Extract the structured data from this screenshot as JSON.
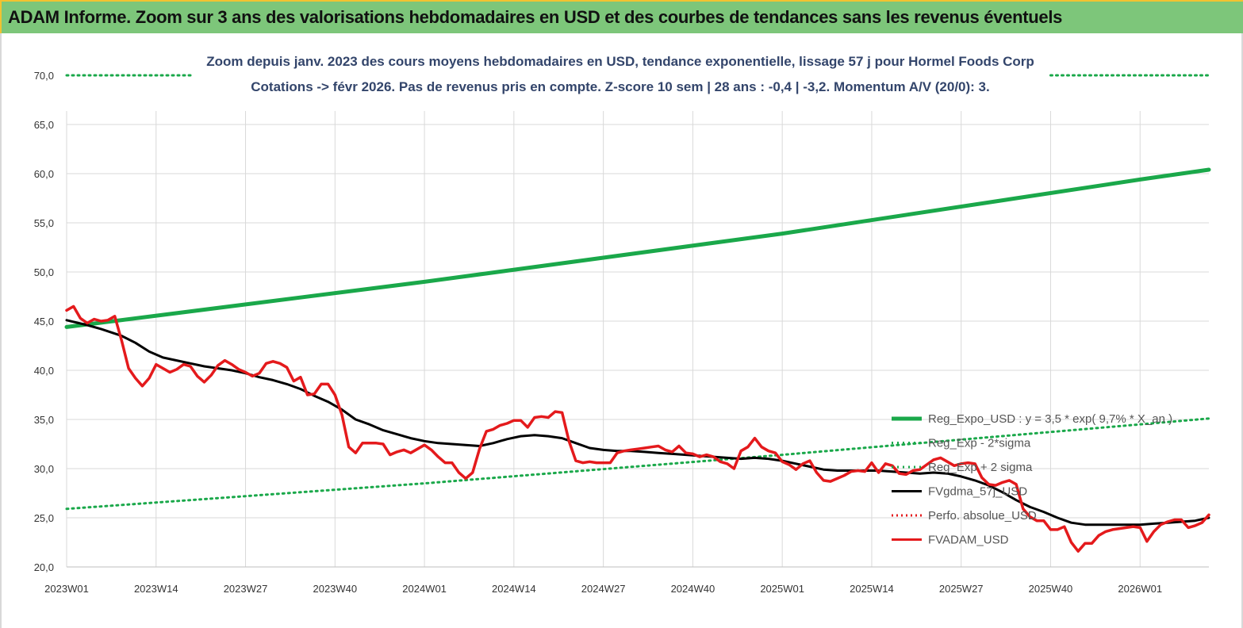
{
  "banner": {
    "title": "ADAM Informe. Zoom sur 3 ans des valorisations hebdomadaires en USD et des courbes de tendances sans les revenus éventuels"
  },
  "colors": {
    "banner_bg": "#7dc67a",
    "reg_expo": "#1aa84a",
    "sigma": "#1aa84a",
    "gdma": "#000000",
    "perfo": "#e41a1c",
    "adam": "#e41a1c"
  },
  "chart_data": {
    "type": "line",
    "title": "Zoom depuis janv. 2023 des cours moyens hebdomadaires en USD, tendance exponentielle, lissage 57 j pour Hormel Foods Corp",
    "subtitle": "Cotations -> févr 2026.  Pas de revenus pris en compte. Z-score 10 sem | 28 ans : -0,4 | -3,2. Momentum A/V (20/0): 3.",
    "xlabel": "",
    "ylabel": "",
    "ylim": [
      20,
      70
    ],
    "y_ticks": [
      "70,0",
      "65,0",
      "60,0",
      "55,0",
      "50,0",
      "45,0",
      "40,0",
      "35,0",
      "30,0",
      "25,0",
      "20,0"
    ],
    "x_ticks": [
      "2023W01",
      "2023W14",
      "2023W27",
      "2023W40",
      "2024W01",
      "2024W14",
      "2024W27",
      "2024W40",
      "2025W01",
      "2025W14",
      "2025W27",
      "2025W40",
      "2026W01"
    ],
    "x_tick_weeks": [
      0,
      13,
      26,
      39,
      52,
      65,
      78,
      91,
      104,
      117,
      130,
      143,
      156
    ],
    "x_range_weeks": [
      0,
      166
    ],
    "grid": true,
    "legend_position": "bottom-right",
    "series": [
      {
        "name": "Reg_Expo_USD : y = 3,5 * exp( 9,7% * X_an )",
        "style": "solid-thick",
        "points": [
          [
            0,
            44.4
          ],
          [
            52,
            49.0
          ],
          [
            104,
            53.9
          ],
          [
            156,
            59.4
          ],
          [
            166,
            60.4
          ]
        ]
      },
      {
        "name": "Reg_Exp - 2*sigma",
        "style": "dotted",
        "points": [
          [
            0,
            25.9
          ],
          [
            52,
            28.5
          ],
          [
            104,
            31.4
          ],
          [
            156,
            34.5
          ],
          [
            166,
            35.1
          ]
        ]
      },
      {
        "name": "Reg_Exp + 2 sigma",
        "style": "dotted",
        "points": [
          [
            0,
            70.0
          ],
          [
            18,
            70.0
          ],
          [
            143,
            70.0
          ],
          [
            166,
            70.0
          ]
        ]
      },
      {
        "name": "FVgdma_57j_USD",
        "style": "solid",
        "points": [
          [
            0,
            45.1
          ],
          [
            3,
            44.6
          ],
          [
            5,
            44.2
          ],
          [
            8,
            43.5
          ],
          [
            10,
            42.8
          ],
          [
            12,
            41.9
          ],
          [
            14,
            41.3
          ],
          [
            16,
            41.0
          ],
          [
            18,
            40.7
          ],
          [
            20,
            40.4
          ],
          [
            22,
            40.2
          ],
          [
            24,
            40.0
          ],
          [
            26,
            39.7
          ],
          [
            28,
            39.3
          ],
          [
            30,
            39.0
          ],
          [
            32,
            38.6
          ],
          [
            34,
            38.1
          ],
          [
            36,
            37.4
          ],
          [
            38,
            36.8
          ],
          [
            40,
            36.0
          ],
          [
            42,
            35.0
          ],
          [
            44,
            34.5
          ],
          [
            46,
            33.9
          ],
          [
            48,
            33.5
          ],
          [
            50,
            33.1
          ],
          [
            52,
            32.8
          ],
          [
            54,
            32.6
          ],
          [
            56,
            32.5
          ],
          [
            58,
            32.4
          ],
          [
            60,
            32.3
          ],
          [
            62,
            32.6
          ],
          [
            64,
            33.0
          ],
          [
            66,
            33.3
          ],
          [
            68,
            33.4
          ],
          [
            70,
            33.3
          ],
          [
            72,
            33.1
          ],
          [
            74,
            32.6
          ],
          [
            76,
            32.1
          ],
          [
            78,
            31.9
          ],
          [
            80,
            31.8
          ],
          [
            82,
            31.8
          ],
          [
            84,
            31.7
          ],
          [
            86,
            31.6
          ],
          [
            88,
            31.5
          ],
          [
            90,
            31.4
          ],
          [
            92,
            31.3
          ],
          [
            94,
            31.2
          ],
          [
            96,
            31.1
          ],
          [
            98,
            31.0
          ],
          [
            100,
            31.1
          ],
          [
            102,
            31.0
          ],
          [
            104,
            30.8
          ],
          [
            106,
            30.5
          ],
          [
            108,
            30.2
          ],
          [
            110,
            29.9
          ],
          [
            112,
            29.8
          ],
          [
            114,
            29.8
          ],
          [
            116,
            29.8
          ],
          [
            118,
            29.8
          ],
          [
            120,
            29.7
          ],
          [
            122,
            29.6
          ],
          [
            124,
            29.5
          ],
          [
            126,
            29.6
          ],
          [
            128,
            29.5
          ],
          [
            130,
            29.2
          ],
          [
            132,
            28.8
          ],
          [
            134,
            28.3
          ],
          [
            136,
            27.6
          ],
          [
            138,
            26.8
          ],
          [
            140,
            26.1
          ],
          [
            142,
            25.6
          ],
          [
            144,
            25.0
          ],
          [
            146,
            24.5
          ],
          [
            148,
            24.3
          ],
          [
            150,
            24.3
          ],
          [
            152,
            24.3
          ],
          [
            154,
            24.3
          ],
          [
            156,
            24.3
          ],
          [
            158,
            24.4
          ],
          [
            160,
            24.5
          ],
          [
            162,
            24.6
          ],
          [
            164,
            24.7
          ],
          [
            166,
            25.0
          ]
        ]
      },
      {
        "name": "Perfo. absolue_USD",
        "style": "dotted",
        "points": []
      },
      {
        "name": "FVADAM_USD",
        "style": "solid",
        "points": [
          [
            0,
            46.1
          ],
          [
            1,
            46.5
          ],
          [
            2,
            45.3
          ],
          [
            3,
            44.8
          ],
          [
            4,
            45.2
          ],
          [
            5,
            45.0
          ],
          [
            6,
            45.1
          ],
          [
            7,
            45.5
          ],
          [
            8,
            43.0
          ],
          [
            9,
            40.2
          ],
          [
            10,
            39.2
          ],
          [
            11,
            38.4
          ],
          [
            12,
            39.2
          ],
          [
            13,
            40.6
          ],
          [
            14,
            40.2
          ],
          [
            15,
            39.8
          ],
          [
            16,
            40.1
          ],
          [
            17,
            40.6
          ],
          [
            18,
            40.4
          ],
          [
            19,
            39.4
          ],
          [
            20,
            38.8
          ],
          [
            21,
            39.5
          ],
          [
            22,
            40.5
          ],
          [
            23,
            41.0
          ],
          [
            24,
            40.6
          ],
          [
            25,
            40.1
          ],
          [
            26,
            39.8
          ],
          [
            27,
            39.4
          ],
          [
            28,
            39.7
          ],
          [
            29,
            40.7
          ],
          [
            30,
            40.9
          ],
          [
            31,
            40.7
          ],
          [
            32,
            40.3
          ],
          [
            33,
            38.9
          ],
          [
            34,
            39.3
          ],
          [
            35,
            37.5
          ],
          [
            36,
            37.6
          ],
          [
            37,
            38.6
          ],
          [
            38,
            38.6
          ],
          [
            39,
            37.5
          ],
          [
            40,
            35.5
          ],
          [
            41,
            32.2
          ],
          [
            42,
            31.6
          ],
          [
            43,
            32.6
          ],
          [
            44,
            32.6
          ],
          [
            45,
            32.6
          ],
          [
            46,
            32.5
          ],
          [
            47,
            31.4
          ],
          [
            48,
            31.7
          ],
          [
            49,
            31.9
          ],
          [
            50,
            31.6
          ],
          [
            51,
            32.0
          ],
          [
            52,
            32.4
          ],
          [
            53,
            31.9
          ],
          [
            54,
            31.2
          ],
          [
            55,
            30.6
          ],
          [
            56,
            30.6
          ],
          [
            57,
            29.6
          ],
          [
            58,
            29.0
          ],
          [
            59,
            29.6
          ],
          [
            60,
            32.0
          ],
          [
            61,
            33.8
          ],
          [
            62,
            34.0
          ],
          [
            63,
            34.4
          ],
          [
            64,
            34.6
          ],
          [
            65,
            34.9
          ],
          [
            66,
            34.9
          ],
          [
            67,
            34.2
          ],
          [
            68,
            35.2
          ],
          [
            69,
            35.3
          ],
          [
            70,
            35.2
          ],
          [
            71,
            35.8
          ],
          [
            72,
            35.7
          ],
          [
            73,
            32.8
          ],
          [
            74,
            30.8
          ],
          [
            75,
            30.6
          ],
          [
            76,
            30.7
          ],
          [
            77,
            30.6
          ],
          [
            78,
            30.6
          ],
          [
            79,
            30.6
          ],
          [
            80,
            31.6
          ],
          [
            81,
            31.8
          ],
          [
            82,
            31.9
          ],
          [
            83,
            32.0
          ],
          [
            84,
            32.1
          ],
          [
            85,
            32.2
          ],
          [
            86,
            32.3
          ],
          [
            87,
            31.9
          ],
          [
            88,
            31.7
          ],
          [
            89,
            32.3
          ],
          [
            90,
            31.6
          ],
          [
            91,
            31.5
          ],
          [
            92,
            31.2
          ],
          [
            93,
            31.4
          ],
          [
            94,
            31.2
          ],
          [
            95,
            30.7
          ],
          [
            96,
            30.5
          ],
          [
            97,
            30.0
          ],
          [
            98,
            31.8
          ],
          [
            99,
            32.2
          ],
          [
            100,
            33.1
          ],
          [
            101,
            32.2
          ],
          [
            102,
            31.8
          ],
          [
            103,
            31.6
          ],
          [
            104,
            30.7
          ],
          [
            105,
            30.4
          ],
          [
            106,
            29.9
          ],
          [
            107,
            30.5
          ],
          [
            108,
            30.8
          ],
          [
            109,
            29.6
          ],
          [
            110,
            28.8
          ],
          [
            111,
            28.7
          ],
          [
            112,
            29.0
          ],
          [
            113,
            29.3
          ],
          [
            114,
            29.7
          ],
          [
            115,
            29.8
          ],
          [
            116,
            29.7
          ],
          [
            117,
            30.6
          ],
          [
            118,
            29.6
          ],
          [
            119,
            30.5
          ],
          [
            120,
            30.3
          ],
          [
            121,
            29.5
          ],
          [
            122,
            29.4
          ],
          [
            123,
            29.8
          ],
          [
            124,
            29.9
          ],
          [
            125,
            30.4
          ],
          [
            126,
            30.9
          ],
          [
            127,
            31.1
          ],
          [
            128,
            30.7
          ],
          [
            129,
            30.3
          ],
          [
            130,
            30.5
          ],
          [
            131,
            30.6
          ],
          [
            132,
            30.5
          ],
          [
            133,
            29.1
          ],
          [
            134,
            28.4
          ],
          [
            135,
            28.3
          ],
          [
            136,
            28.6
          ],
          [
            137,
            28.8
          ],
          [
            138,
            28.4
          ],
          [
            139,
            25.9
          ],
          [
            140,
            25.1
          ],
          [
            141,
            24.7
          ],
          [
            142,
            24.7
          ],
          [
            143,
            23.8
          ],
          [
            144,
            23.8
          ],
          [
            145,
            24.1
          ],
          [
            146,
            22.5
          ],
          [
            147,
            21.6
          ],
          [
            148,
            22.4
          ],
          [
            149,
            22.4
          ],
          [
            150,
            23.2
          ],
          [
            151,
            23.6
          ],
          [
            152,
            23.8
          ],
          [
            153,
            23.9
          ],
          [
            154,
            24.0
          ],
          [
            155,
            24.1
          ],
          [
            156,
            24.0
          ],
          [
            157,
            22.6
          ],
          [
            158,
            23.6
          ],
          [
            159,
            24.3
          ],
          [
            160,
            24.6
          ],
          [
            161,
            24.8
          ],
          [
            162,
            24.8
          ],
          [
            163,
            24.0
          ],
          [
            164,
            24.2
          ],
          [
            165,
            24.5
          ],
          [
            166,
            25.3
          ]
        ]
      }
    ]
  }
}
